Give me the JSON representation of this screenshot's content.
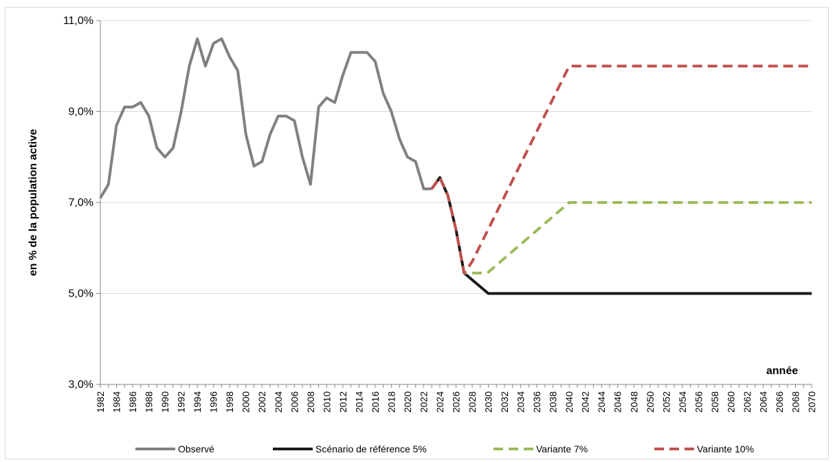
{
  "chart_data": {
    "type": "line",
    "xlabel": "année",
    "ylabel": "en % de la population active",
    "ylim": [
      3.0,
      11.0
    ],
    "y_ticks": [
      "3,0%",
      "5,0%",
      "7,0%",
      "9,0%",
      "11,0%"
    ],
    "x_range": [
      1982,
      2070
    ],
    "x_tick_step": 2,
    "grid": "horizontal",
    "legend_position": "bottom",
    "series": [
      {
        "name": "Observé",
        "color": "#808080",
        "style": "solid",
        "points": [
          [
            1982,
            7.1
          ],
          [
            1983,
            7.4
          ],
          [
            1984,
            8.7
          ],
          [
            1985,
            9.1
          ],
          [
            1986,
            9.1
          ],
          [
            1987,
            9.2
          ],
          [
            1988,
            8.9
          ],
          [
            1989,
            8.2
          ],
          [
            1990,
            8.0
          ],
          [
            1991,
            8.2
          ],
          [
            1992,
            9.0
          ],
          [
            1993,
            10.0
          ],
          [
            1994,
            10.6
          ],
          [
            1995,
            10.0
          ],
          [
            1996,
            10.5
          ],
          [
            1997,
            10.6
          ],
          [
            1998,
            10.2
          ],
          [
            1999,
            9.9
          ],
          [
            2000,
            8.5
          ],
          [
            2001,
            7.8
          ],
          [
            2002,
            7.9
          ],
          [
            2003,
            8.5
          ],
          [
            2004,
            8.9
          ],
          [
            2005,
            8.9
          ],
          [
            2006,
            8.8
          ],
          [
            2007,
            8.0
          ],
          [
            2008,
            7.4
          ],
          [
            2009,
            9.1
          ],
          [
            2010,
            9.3
          ],
          [
            2011,
            9.2
          ],
          [
            2012,
            9.8
          ],
          [
            2013,
            10.3
          ],
          [
            2014,
            10.3
          ],
          [
            2015,
            10.3
          ],
          [
            2016,
            10.1
          ],
          [
            2017,
            9.4
          ],
          [
            2018,
            9.0
          ],
          [
            2019,
            8.4
          ],
          [
            2020,
            8.0
          ],
          [
            2021,
            7.9
          ],
          [
            2022,
            7.3
          ],
          [
            2023,
            7.3
          ]
        ]
      },
      {
        "name": "Scénario de référence 5%",
        "color": "#1a1a1a",
        "style": "solid",
        "points": [
          [
            2023,
            7.3
          ],
          [
            2024,
            7.55
          ],
          [
            2025,
            7.15
          ],
          [
            2026,
            6.4
          ],
          [
            2027,
            5.45
          ],
          [
            2028,
            5.3
          ],
          [
            2029,
            5.15
          ],
          [
            2030,
            5.0
          ],
          [
            2070,
            5.0
          ]
        ]
      },
      {
        "name": "Variante 7%",
        "color": "#9bbb59",
        "style": "dashed",
        "points": [
          [
            2023,
            7.3
          ],
          [
            2024,
            7.55
          ],
          [
            2025,
            7.15
          ],
          [
            2026,
            6.4
          ],
          [
            2027,
            5.45
          ],
          [
            2028,
            5.45
          ],
          [
            2029,
            5.45
          ],
          [
            2030,
            5.47
          ],
          [
            2040,
            7.0
          ],
          [
            2070,
            7.0
          ]
        ]
      },
      {
        "name": "Variante 10%",
        "color": "#c0504d",
        "style": "dashed",
        "points": [
          [
            2023,
            7.3
          ],
          [
            2024,
            7.55
          ],
          [
            2025,
            7.15
          ],
          [
            2026,
            6.4
          ],
          [
            2027,
            5.45
          ],
          [
            2028,
            5.7
          ],
          [
            2040,
            10.0
          ],
          [
            2070,
            10.0
          ]
        ]
      }
    ]
  }
}
